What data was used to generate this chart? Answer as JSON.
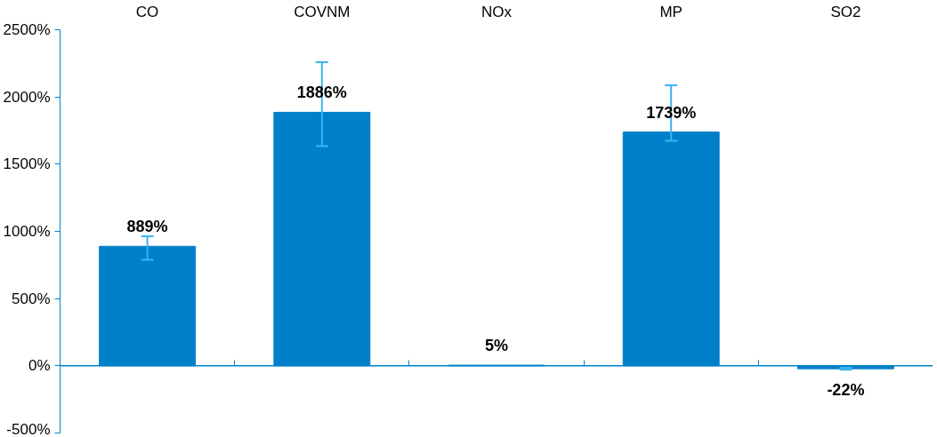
{
  "chart_data": {
    "type": "bar",
    "categories": [
      "CO",
      "COVNM",
      "NOx",
      "MP",
      "SO2"
    ],
    "values": [
      889,
      1886,
      5,
      1739,
      -22
    ],
    "value_labels": [
      "889%",
      "1886%",
      "5%",
      "1739%",
      "-22%"
    ],
    "errors": [
      [
        789,
        963
      ],
      [
        1635,
        2259
      ],
      null,
      [
        1674,
        2087
      ],
      [
        -30,
        -15
      ]
    ],
    "color": "#0080c8",
    "ref_lines": [
      {
        "axis": "y",
        "value": 0,
        "color": "#0080c8"
      }
    ],
    "ylim": [
      -500,
      2500
    ],
    "yticks": [
      {
        "value": -500,
        "label": "-500%"
      },
      {
        "value": 0,
        "label": "0%"
      },
      {
        "value": 500,
        "label": "500%"
      },
      {
        "value": 1000,
        "label": "1000%"
      },
      {
        "value": 1500,
        "label": "1500%"
      },
      {
        "value": 2000,
        "label": "2000%"
      },
      {
        "value": 2500,
        "label": "2500%"
      }
    ],
    "grid": false
  }
}
